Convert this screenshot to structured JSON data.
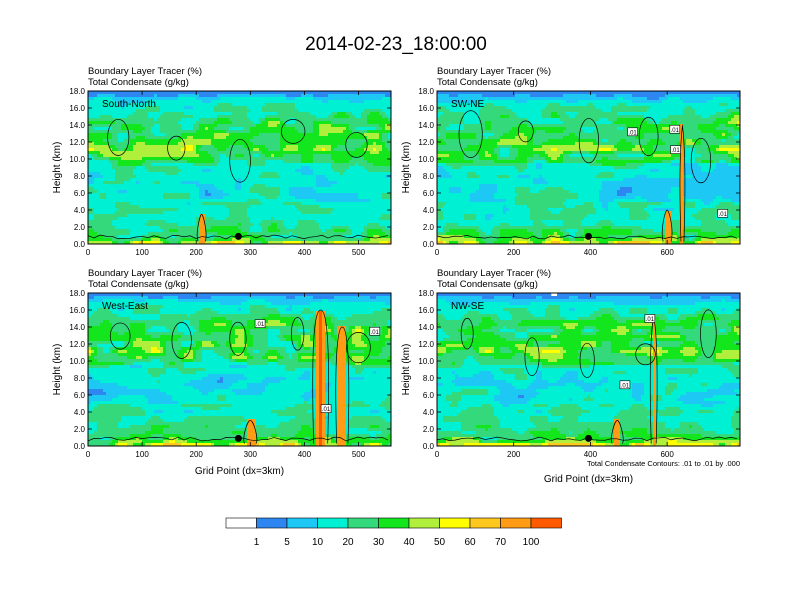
{
  "title": "2014-02-23_18:00:00",
  "colors": {
    "levels": [
      "#ffffff",
      "#2e87f0",
      "#1ec8f5",
      "#00f0d4",
      "#33d97a",
      "#14e61e",
      "#b0f03c",
      "#ffff00",
      "#ffc81e",
      "#ff9b14",
      "#ff5a00",
      "#ff1e1e"
    ],
    "contour": "#000000"
  },
  "chart_data": [
    {
      "type": "heatmap",
      "name": "south-north",
      "label": "South-North",
      "title_lines": [
        "Boundary Layer Tracer   (%)",
        "Total Condensate   (g/kg)"
      ],
      "xlabel": "",
      "ylabel": "Height (km)",
      "xlim": [
        0,
        560
      ],
      "ylim": [
        0,
        18
      ],
      "xticks": [
        0,
        100,
        200,
        300,
        400,
        500
      ],
      "yticks": [
        "0.0",
        "2.0",
        "4.0",
        "6.0",
        "8.0",
        "10.0",
        "12.0",
        "14.0",
        "16.0",
        "18.0"
      ],
      "marker_x": 278,
      "contour_labels": []
    },
    {
      "type": "heatmap",
      "name": "sw-ne",
      "label": "SW-NE",
      "title_lines": [
        "Boundary Layer Tracer   (%)",
        "Total Condensate   (g/kg)"
      ],
      "xlabel": "",
      "ylabel": "Height (km)",
      "xlim": [
        0,
        790
      ],
      "ylim": [
        0,
        18
      ],
      "xticks": [
        0,
        200,
        400,
        600
      ],
      "yticks": [
        "0.0",
        "2.0",
        "4.0",
        "6.0",
        "8.0",
        "10.0",
        "12.0",
        "14.0",
        "16.0",
        "18.0"
      ],
      "marker_x": 395,
      "contour_labels": [
        {
          "text": ".01",
          "x": 510,
          "y": 13.2
        },
        {
          "text": ".01",
          "x": 620,
          "y": 13.5
        },
        {
          "text": ".01",
          "x": 622,
          "y": 11.1
        },
        {
          "text": ".01",
          "x": 745,
          "y": 3.6
        }
      ]
    },
    {
      "type": "heatmap",
      "name": "west-east",
      "label": "West-East",
      "title_lines": [
        "Boundary Layer Tracer   (%)",
        "Total Condensate   (g/kg)"
      ],
      "xlabel": "Grid Point (dx=3km)",
      "ylabel": "Height (km)",
      "xlim": [
        0,
        560
      ],
      "ylim": [
        0,
        18
      ],
      "xticks": [
        0,
        100,
        200,
        300,
        400,
        500
      ],
      "yticks": [
        "0.0",
        "2.0",
        "4.0",
        "6.0",
        "8.0",
        "10.0",
        "12.0",
        "14.0",
        "16.0",
        "18.0"
      ],
      "marker_x": 278,
      "contour_labels": [
        {
          "text": ".01",
          "x": 318,
          "y": 14.4
        },
        {
          "text": ".01",
          "x": 530,
          "y": 13.5
        },
        {
          "text": ".01",
          "x": 440,
          "y": 4.4
        }
      ]
    },
    {
      "type": "heatmap",
      "name": "nw-se",
      "label": "NW-SE",
      "title_lines": [
        "Boundary Layer Tracer   (%)",
        "Total Condensate   (g/kg)"
      ],
      "xlabel": "Grid Point (dx=3km)",
      "ylabel": "Height (km)",
      "xlim": [
        0,
        790
      ],
      "ylim": [
        0,
        18
      ],
      "xticks": [
        0,
        200,
        400,
        600
      ],
      "yticks": [
        "0.0",
        "2.0",
        "4.0",
        "6.0",
        "8.0",
        "10.0",
        "12.0",
        "14.0",
        "16.0",
        "18.0"
      ],
      "marker_x": 395,
      "contour_labels": [
        {
          "text": ".01",
          "x": 555,
          "y": 15.0
        },
        {
          "text": ".01",
          "x": 490,
          "y": 7.2
        }
      ],
      "note": "Total Condensate Contours: .01 to .01 by .000"
    }
  ],
  "colorbar": {
    "labels": [
      "1",
      "5",
      "10",
      "20",
      "30",
      "40",
      "50",
      "60",
      "70",
      "100"
    ]
  }
}
